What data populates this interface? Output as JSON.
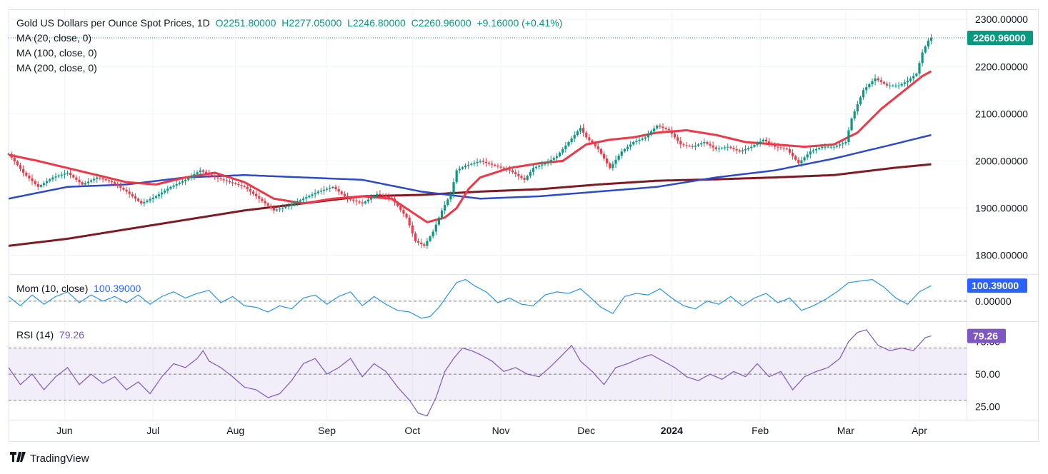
{
  "header": {
    "symbol": "Gold US Dollars per Ounce Spot Prices, 1D",
    "open": "O2251.80000",
    "high": "H2277.05000",
    "low": "L2246.80000",
    "close": "C2260.96000",
    "change": "+9.16000 (+0.41%)",
    "ma20": "MA (20, close, 0)",
    "ma100": "MA (100, close, 0)",
    "ma200": "MA (200, close, 0)"
  },
  "mom": {
    "label": "Mom (10, close)",
    "value": "100.39000",
    "badge": "100.39000",
    "zero": "0.00000"
  },
  "rsi": {
    "label": "RSI (14)",
    "value": "79.26",
    "badge": "79.26",
    "tick_hidden": "75.00"
  },
  "brand": {
    "name": "TradingView"
  },
  "colors": {
    "up": "#089981",
    "down": "#f23645",
    "ma20": "#f23645",
    "ma100": "#2b4bcc",
    "ma200": "#801922",
    "mom": "#2196f3",
    "rsi": "#7e57c2",
    "price_badge": "#089981",
    "mom_badge": "#2962ff"
  },
  "chart_data": {
    "type": "candlestick",
    "title": "Gold US Dollars per Ounce Spot Prices, 1D",
    "last_price": 2260.96,
    "last_price_label": "2260.96000",
    "price_axis": {
      "ylim": [
        1760,
        2320
      ],
      "ticks": [
        1800,
        1900,
        2000,
        2100,
        2200,
        2300
      ],
      "tick_labels": [
        "1800.00000",
        "1900.00000",
        "2000.00000",
        "2100.00000",
        "2200.00000",
        "2300.00000"
      ]
    },
    "x_axis": {
      "range_days": [
        0,
        325
      ],
      "ticks": [
        {
          "day": 19,
          "label": "Jun",
          "bold": false
        },
        {
          "day": 49,
          "label": "Jul",
          "bold": false
        },
        {
          "day": 77,
          "label": "Aug",
          "bold": false
        },
        {
          "day": 108,
          "label": "Sep",
          "bold": false
        },
        {
          "day": 137,
          "label": "Oct",
          "bold": false
        },
        {
          "day": 167,
          "label": "Nov",
          "bold": false
        },
        {
          "day": 196,
          "label": "Dec",
          "bold": false
        },
        {
          "day": 225,
          "label": "2024",
          "bold": true
        },
        {
          "day": 255,
          "label": "Feb",
          "bold": false
        },
        {
          "day": 284,
          "label": "Mar",
          "bold": false
        },
        {
          "day": 309,
          "label": "Apr",
          "bold": false
        }
      ]
    },
    "price_keypoints": [
      [
        0,
        2015
      ],
      [
        5,
        1975
      ],
      [
        10,
        1945
      ],
      [
        15,
        1965
      ],
      [
        20,
        1975
      ],
      [
        25,
        1950
      ],
      [
        30,
        1965
      ],
      [
        35,
        1955
      ],
      [
        40,
        1935
      ],
      [
        45,
        1910
      ],
      [
        50,
        1925
      ],
      [
        55,
        1945
      ],
      [
        60,
        1960
      ],
      [
        65,
        1980
      ],
      [
        70,
        1965
      ],
      [
        75,
        1955
      ],
      [
        80,
        1945
      ],
      [
        85,
        1920
      ],
      [
        90,
        1895
      ],
      [
        95,
        1905
      ],
      [
        100,
        1920
      ],
      [
        105,
        1935
      ],
      [
        110,
        1945
      ],
      [
        115,
        1920
      ],
      [
        120,
        1910
      ],
      [
        125,
        1930
      ],
      [
        130,
        1920
      ],
      [
        135,
        1880
      ],
      [
        138,
        1830
      ],
      [
        141,
        1820
      ],
      [
        144,
        1850
      ],
      [
        147,
        1895
      ],
      [
        150,
        1930
      ],
      [
        152,
        1980
      ],
      [
        155,
        1990
      ],
      [
        160,
        2000
      ],
      [
        165,
        1990
      ],
      [
        170,
        1980
      ],
      [
        175,
        1960
      ],
      [
        178,
        1985
      ],
      [
        182,
        1995
      ],
      [
        186,
        2010
      ],
      [
        190,
        2040
      ],
      [
        194,
        2070
      ],
      [
        196,
        2050
      ],
      [
        200,
        2025
      ],
      [
        204,
        1985
      ],
      [
        208,
        2020
      ],
      [
        212,
        2040
      ],
      [
        216,
        2050
      ],
      [
        220,
        2075
      ],
      [
        224,
        2065
      ],
      [
        228,
        2035
      ],
      [
        232,
        2030
      ],
      [
        236,
        2040
      ],
      [
        240,
        2025
      ],
      [
        244,
        2030
      ],
      [
        248,
        2020
      ],
      [
        252,
        2030
      ],
      [
        256,
        2045
      ],
      [
        260,
        2030
      ],
      [
        264,
        2025
      ],
      [
        268,
        1995
      ],
      [
        272,
        2020
      ],
      [
        276,
        2030
      ],
      [
        280,
        2030
      ],
      [
        284,
        2040
      ],
      [
        286,
        2090
      ],
      [
        290,
        2150
      ],
      [
        294,
        2175
      ],
      [
        298,
        2160
      ],
      [
        302,
        2160
      ],
      [
        305,
        2170
      ],
      [
        308,
        2185
      ],
      [
        310,
        2230
      ],
      [
        312,
        2255
      ],
      [
        313,
        2261
      ]
    ],
    "ma20_keypoints": [
      [
        0,
        2013
      ],
      [
        10,
        2000
      ],
      [
        20,
        1985
      ],
      [
        30,
        1970
      ],
      [
        40,
        1955
      ],
      [
        50,
        1950
      ],
      [
        60,
        1965
      ],
      [
        70,
        1975
      ],
      [
        80,
        1955
      ],
      [
        90,
        1920
      ],
      [
        100,
        1910
      ],
      [
        110,
        1920
      ],
      [
        120,
        1925
      ],
      [
        130,
        1920
      ],
      [
        136,
        1895
      ],
      [
        142,
        1870
      ],
      [
        148,
        1880
      ],
      [
        152,
        1900
      ],
      [
        156,
        1940
      ],
      [
        160,
        1965
      ],
      [
        165,
        1975
      ],
      [
        170,
        1985
      ],
      [
        180,
        1995
      ],
      [
        188,
        2000
      ],
      [
        196,
        2035
      ],
      [
        204,
        2045
      ],
      [
        212,
        2050
      ],
      [
        220,
        2060
      ],
      [
        230,
        2065
      ],
      [
        240,
        2055
      ],
      [
        250,
        2040
      ],
      [
        260,
        2035
      ],
      [
        270,
        2030
      ],
      [
        280,
        2035
      ],
      [
        288,
        2060
      ],
      [
        296,
        2110
      ],
      [
        304,
        2150
      ],
      [
        310,
        2180
      ],
      [
        313,
        2190
      ]
    ],
    "ma100_keypoints": [
      [
        0,
        1920
      ],
      [
        20,
        1945
      ],
      [
        40,
        1950
      ],
      [
        60,
        1965
      ],
      [
        80,
        1970
      ],
      [
        100,
        1965
      ],
      [
        120,
        1960
      ],
      [
        140,
        1935
      ],
      [
        160,
        1920
      ],
      [
        180,
        1925
      ],
      [
        200,
        1935
      ],
      [
        220,
        1945
      ],
      [
        240,
        1965
      ],
      [
        260,
        1980
      ],
      [
        280,
        2005
      ],
      [
        300,
        2035
      ],
      [
        313,
        2055
      ]
    ],
    "ma200_keypoints": [
      [
        0,
        1820
      ],
      [
        20,
        1835
      ],
      [
        40,
        1855
      ],
      [
        60,
        1875
      ],
      [
        80,
        1895
      ],
      [
        100,
        1910
      ],
      [
        120,
        1925
      ],
      [
        140,
        1928
      ],
      [
        160,
        1935
      ],
      [
        180,
        1940
      ],
      [
        200,
        1950
      ],
      [
        220,
        1958
      ],
      [
        240,
        1961
      ],
      [
        260,
        1965
      ],
      [
        280,
        1970
      ],
      [
        300,
        1985
      ],
      [
        313,
        1993
      ]
    ],
    "mom_axis": {
      "ylim": [
        -130,
        170
      ],
      "ticks": [
        0
      ],
      "tick_labels": [
        "0.00000"
      ]
    },
    "mom_keypoints": [
      [
        0,
        30
      ],
      [
        4,
        -30
      ],
      [
        8,
        40
      ],
      [
        12,
        -20
      ],
      [
        16,
        30
      ],
      [
        20,
        60
      ],
      [
        24,
        -10
      ],
      [
        28,
        40
      ],
      [
        32,
        0
      ],
      [
        36,
        30
      ],
      [
        40,
        -10
      ],
      [
        44,
        40
      ],
      [
        48,
        -20
      ],
      [
        52,
        30
      ],
      [
        56,
        60
      ],
      [
        60,
        20
      ],
      [
        64,
        50
      ],
      [
        68,
        70
      ],
      [
        72,
        -10
      ],
      [
        76,
        30
      ],
      [
        80,
        -30
      ],
      [
        84,
        -40
      ],
      [
        88,
        -70
      ],
      [
        92,
        -30
      ],
      [
        96,
        -50
      ],
      [
        100,
        20
      ],
      [
        104,
        40
      ],
      [
        108,
        -20
      ],
      [
        112,
        30
      ],
      [
        116,
        60
      ],
      [
        120,
        -30
      ],
      [
        124,
        30
      ],
      [
        128,
        -20
      ],
      [
        132,
        -60
      ],
      [
        136,
        -70
      ],
      [
        140,
        -110
      ],
      [
        143,
        -100
      ],
      [
        146,
        -40
      ],
      [
        149,
        40
      ],
      [
        152,
        120
      ],
      [
        155,
        140
      ],
      [
        158,
        100
      ],
      [
        162,
        60
      ],
      [
        166,
        -10
      ],
      [
        170,
        20
      ],
      [
        174,
        -20
      ],
      [
        178,
        -30
      ],
      [
        182,
        40
      ],
      [
        186,
        60
      ],
      [
        190,
        50
      ],
      [
        194,
        80
      ],
      [
        197,
        30
      ],
      [
        201,
        -40
      ],
      [
        205,
        -80
      ],
      [
        209,
        30
      ],
      [
        213,
        50
      ],
      [
        217,
        40
      ],
      [
        221,
        80
      ],
      [
        225,
        20
      ],
      [
        229,
        -30
      ],
      [
        233,
        -50
      ],
      [
        237,
        0
      ],
      [
        241,
        -20
      ],
      [
        245,
        30
      ],
      [
        249,
        -30
      ],
      [
        253,
        20
      ],
      [
        257,
        50
      ],
      [
        261,
        -10
      ],
      [
        265,
        20
      ],
      [
        269,
        -60
      ],
      [
        273,
        -30
      ],
      [
        277,
        10
      ],
      [
        281,
        60
      ],
      [
        285,
        120
      ],
      [
        289,
        130
      ],
      [
        293,
        140
      ],
      [
        297,
        90
      ],
      [
        301,
        20
      ],
      [
        305,
        -20
      ],
      [
        309,
        60
      ],
      [
        313,
        100.39
      ]
    ],
    "rsi_axis": {
      "ylim": [
        15,
        90
      ],
      "ticks": [
        25,
        50,
        75
      ],
      "tick_labels": [
        "25.00",
        "50.00",
        "75.00"
      ],
      "overbought": 70,
      "midline": 50,
      "oversold": 30
    },
    "rsi_keypoints": [
      [
        0,
        55
      ],
      [
        4,
        42
      ],
      [
        8,
        50
      ],
      [
        12,
        38
      ],
      [
        16,
        48
      ],
      [
        20,
        55
      ],
      [
        24,
        42
      ],
      [
        28,
        50
      ],
      [
        32,
        43
      ],
      [
        36,
        48
      ],
      [
        40,
        38
      ],
      [
        44,
        44
      ],
      [
        48,
        35
      ],
      [
        52,
        48
      ],
      [
        56,
        58
      ],
      [
        60,
        55
      ],
      [
        64,
        62
      ],
      [
        66,
        68
      ],
      [
        68,
        60
      ],
      [
        72,
        55
      ],
      [
        76,
        48
      ],
      [
        80,
        40
      ],
      [
        84,
        38
      ],
      [
        88,
        32
      ],
      [
        92,
        35
      ],
      [
        96,
        45
      ],
      [
        100,
        58
      ],
      [
        104,
        62
      ],
      [
        108,
        50
      ],
      [
        112,
        55
      ],
      [
        116,
        62
      ],
      [
        120,
        48
      ],
      [
        124,
        58
      ],
      [
        128,
        52
      ],
      [
        132,
        40
      ],
      [
        136,
        30
      ],
      [
        139,
        20
      ],
      [
        142,
        18
      ],
      [
        145,
        32
      ],
      [
        148,
        52
      ],
      [
        151,
        62
      ],
      [
        154,
        70
      ],
      [
        157,
        68
      ],
      [
        160,
        65
      ],
      [
        164,
        60
      ],
      [
        168,
        52
      ],
      [
        172,
        55
      ],
      [
        176,
        50
      ],
      [
        180,
        48
      ],
      [
        184,
        56
      ],
      [
        188,
        65
      ],
      [
        191,
        72
      ],
      [
        194,
        60
      ],
      [
        198,
        52
      ],
      [
        202,
        42
      ],
      [
        206,
        55
      ],
      [
        210,
        58
      ],
      [
        214,
        62
      ],
      [
        218,
        65
      ],
      [
        222,
        60
      ],
      [
        226,
        55
      ],
      [
        230,
        48
      ],
      [
        234,
        45
      ],
      [
        238,
        50
      ],
      [
        242,
        46
      ],
      [
        246,
        52
      ],
      [
        250,
        48
      ],
      [
        254,
        58
      ],
      [
        258,
        48
      ],
      [
        262,
        52
      ],
      [
        266,
        38
      ],
      [
        270,
        48
      ],
      [
        274,
        52
      ],
      [
        278,
        55
      ],
      [
        282,
        62
      ],
      [
        285,
        75
      ],
      [
        288,
        82
      ],
      [
        291,
        84
      ],
      [
        295,
        72
      ],
      [
        299,
        68
      ],
      [
        303,
        70
      ],
      [
        307,
        68
      ],
      [
        311,
        78
      ],
      [
        313,
        79.26
      ]
    ]
  }
}
